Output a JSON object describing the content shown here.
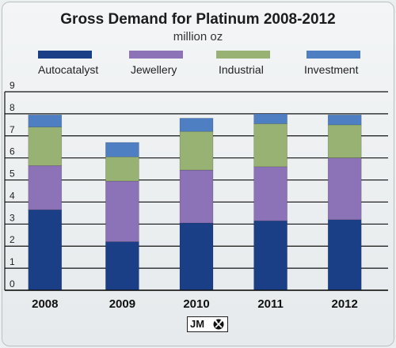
{
  "chart_data": {
    "type": "bar",
    "stacked": true,
    "title": "Gross Demand for Platinum 2008-2012",
    "subtitle": "million oz",
    "categories": [
      "2008",
      "2009",
      "2010",
      "2011",
      "2012"
    ],
    "ylim": [
      0,
      9
    ],
    "yticks": [
      "0",
      "1",
      "2",
      "3",
      "4",
      "5",
      "6",
      "7",
      "8",
      "9"
    ],
    "grid": true,
    "legend_position": "top",
    "series": [
      {
        "name": "Autocatalyst",
        "color": "#1b3f87",
        "values": [
          3.65,
          2.2,
          3.05,
          3.15,
          3.2
        ]
      },
      {
        "name": "Jewellery",
        "color": "#8c72b6",
        "values": [
          2.0,
          2.75,
          2.4,
          2.45,
          2.8
        ]
      },
      {
        "name": "Industrial",
        "color": "#97b272",
        "values": [
          1.75,
          1.1,
          1.75,
          1.95,
          1.5
        ]
      },
      {
        "name": "Investment",
        "color": "#4f7fc3",
        "values": [
          0.55,
          0.65,
          0.6,
          0.45,
          0.45
        ]
      }
    ]
  },
  "logo": {
    "text": "JM",
    "icon": "crossed-hammers-icon"
  }
}
